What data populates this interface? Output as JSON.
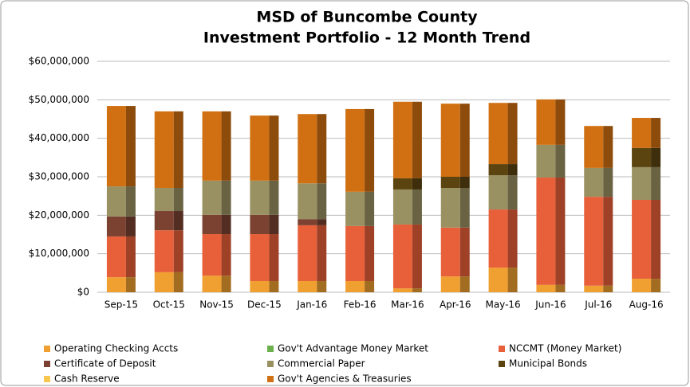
{
  "chart_data": {
    "type": "stacked_bar",
    "title": "MSD of Buncombe County",
    "subtitle": "Investment Portfolio - 12 Month Trend",
    "categories": [
      "Sep-15",
      "Oct-15",
      "Nov-15",
      "Dec-15",
      "Jan-16",
      "Feb-16",
      "Mar-16",
      "Apr-16",
      "May-16",
      "Jun-16",
      "Jul-16",
      "Aug-16"
    ],
    "series": [
      {
        "name": "Operating Checking Accts",
        "color": "#f0a030",
        "values": [
          3900000,
          5200000,
          4300000,
          2900000,
          2900000,
          2900000,
          1000000,
          4100000,
          6400000,
          1900000,
          1700000,
          3500000
        ]
      },
      {
        "name": "Gov't Advantage Money Market",
        "color": "#6ab04c",
        "values": [
          0,
          0,
          0,
          0,
          0,
          0,
          0,
          0,
          0,
          0,
          0,
          0
        ]
      },
      {
        "name": "NCCMT (Money Market)",
        "color": "#e8603a",
        "values": [
          10600000,
          10900000,
          10800000,
          12200000,
          14500000,
          14300000,
          16600000,
          12700000,
          15100000,
          27900000,
          23100000,
          20500000
        ]
      },
      {
        "name": "Certificate of Deposit",
        "color": "#7b4232",
        "values": [
          5200000,
          5000000,
          5000000,
          5000000,
          1600000,
          0,
          0,
          0,
          0,
          0,
          0,
          0
        ]
      },
      {
        "name": "Commercial Paper",
        "color": "#9a9162",
        "values": [
          7800000,
          6000000,
          8900000,
          8900000,
          9300000,
          8900000,
          9100000,
          10300000,
          8900000,
          8500000,
          7500000,
          8500000
        ]
      },
      {
        "name": "Municipal Bonds",
        "color": "#5c4410",
        "values": [
          0,
          0,
          0,
          0,
          0,
          0,
          2900000,
          2900000,
          2900000,
          0,
          0,
          5000000
        ]
      },
      {
        "name": "Cash  Reserve",
        "color": "#f8c850",
        "values": [
          0,
          0,
          0,
          0,
          0,
          0,
          0,
          0,
          0,
          0,
          0,
          0
        ]
      },
      {
        "name": "Gov't Agencies & Treasuries",
        "color": "#d07012",
        "values": [
          20900000,
          19900000,
          18000000,
          16900000,
          18000000,
          21500000,
          19900000,
          19000000,
          15900000,
          11800000,
          10900000,
          7800000
        ]
      }
    ],
    "ylim": [
      0,
      60000000
    ],
    "yticks": [
      {
        "value": 0,
        "label": "$0"
      },
      {
        "value": 10000000,
        "label": "$10,000,000"
      },
      {
        "value": 20000000,
        "label": "$20,000,000"
      },
      {
        "value": 30000000,
        "label": "$30,000,000"
      },
      {
        "value": 40000000,
        "label": "$40,000,000"
      },
      {
        "value": 50000000,
        "label": "$50,000,000"
      },
      {
        "value": 60000000,
        "label": "$60,000,000"
      }
    ],
    "grid": true
  }
}
